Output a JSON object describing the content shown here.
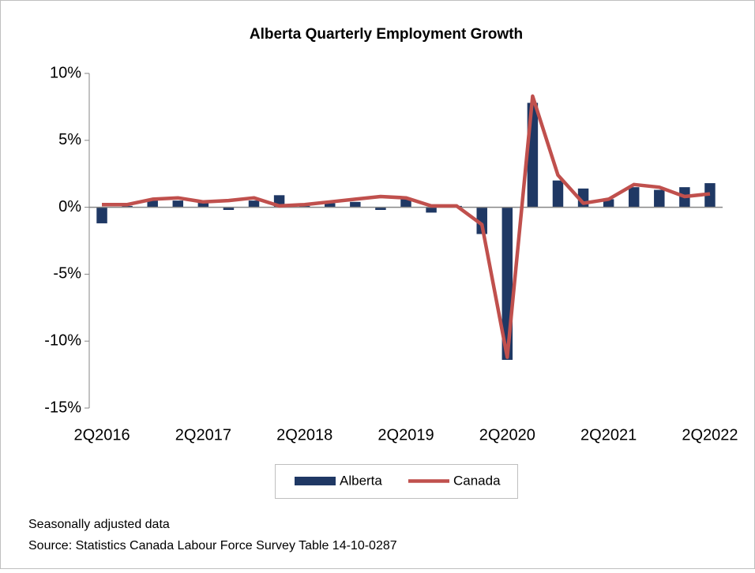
{
  "chart_data": {
    "type": "bar_line",
    "title": "Alberta Quarterly Employment Growth",
    "categories": [
      "2Q2016",
      null,
      null,
      null,
      "2Q2017",
      null,
      null,
      null,
      "2Q2018",
      null,
      null,
      null,
      "2Q2019",
      null,
      null,
      null,
      "2Q2020",
      null,
      null,
      null,
      "2Q2021",
      null,
      null,
      null,
      "2Q2022"
    ],
    "series": [
      {
        "name": "Alberta",
        "type": "bar",
        "color": "#1f3864",
        "values": [
          -1.2,
          0.1,
          0.5,
          0.5,
          0.4,
          -0.2,
          0.5,
          0.9,
          0.1,
          0.3,
          0.4,
          -0.2,
          0.6,
          -0.4,
          0.1,
          -2.0,
          -11.4,
          7.8,
          2.0,
          1.4,
          0.6,
          1.5,
          1.3,
          1.5,
          1.8
        ]
      },
      {
        "name": "Canada",
        "type": "line",
        "color": "#c0504d",
        "values": [
          0.2,
          0.2,
          0.6,
          0.7,
          0.4,
          0.5,
          0.7,
          0.1,
          0.2,
          0.4,
          0.6,
          0.8,
          0.7,
          0.1,
          0.1,
          -1.3,
          -11.2,
          8.3,
          2.4,
          0.3,
          0.6,
          1.7,
          1.5,
          0.8,
          1.0
        ]
      }
    ],
    "ylim": [
      -15,
      10
    ],
    "yticks": [
      {
        "value": -15,
        "label": "-15%"
      },
      {
        "value": -10,
        "label": "-10%"
      },
      {
        "value": -5,
        "label": "-5%"
      },
      {
        "value": 0,
        "label": "0%"
      },
      {
        "value": 5,
        "label": "5%"
      },
      {
        "value": 10,
        "label": "10%"
      }
    ],
    "grid": false,
    "legend": "bottom",
    "notes": [
      "Seasonally adjusted data",
      "Source: Statistics Canada Labour Force Survey Table 14-10-0287"
    ]
  }
}
